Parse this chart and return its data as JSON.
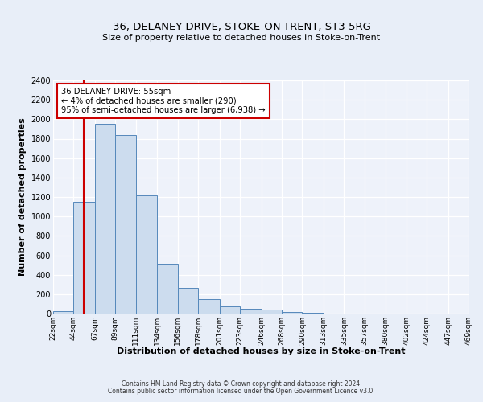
{
  "title": "36, DELANEY DRIVE, STOKE-ON-TRENT, ST3 5RG",
  "subtitle": "Size of property relative to detached houses in Stoke-on-Trent",
  "xlabel": "Distribution of detached houses by size in Stoke-on-Trent",
  "ylabel": "Number of detached properties",
  "bin_edges": [
    22,
    44,
    67,
    89,
    111,
    134,
    156,
    178,
    201,
    223,
    246,
    268,
    290,
    313,
    335,
    357,
    380,
    402,
    424,
    447,
    469
  ],
  "bin_counts": [
    25,
    1150,
    1950,
    1840,
    1215,
    515,
    265,
    148,
    78,
    50,
    40,
    15,
    5,
    3,
    2,
    1,
    1,
    0,
    0,
    0
  ],
  "property_size": 55,
  "bar_facecolor": "#ccdcee",
  "bar_edgecolor": "#5588bb",
  "redline_color": "#cc0000",
  "annotation_box_edgecolor": "#cc0000",
  "annotation_text_line1": "36 DELANEY DRIVE: 55sqm",
  "annotation_text_line2": "← 4% of detached houses are smaller (290)",
  "annotation_text_line3": "95% of semi-detached houses are larger (6,938) →",
  "ylim": [
    0,
    2400
  ],
  "yticks": [
    0,
    200,
    400,
    600,
    800,
    1000,
    1200,
    1400,
    1600,
    1800,
    2000,
    2200,
    2400
  ],
  "footer1": "Contains HM Land Registry data © Crown copyright and database right 2024.",
  "footer2": "Contains public sector information licensed under the Open Government Licence v3.0.",
  "bg_color": "#e8eef8",
  "plot_bg_color": "#eef2fa",
  "grid_color": "#ffffff",
  "tick_labels": [
    "22sqm",
    "44sqm",
    "67sqm",
    "89sqm",
    "111sqm",
    "134sqm",
    "156sqm",
    "178sqm",
    "201sqm",
    "223sqm",
    "246sqm",
    "268sqm",
    "290sqm",
    "313sqm",
    "335sqm",
    "357sqm",
    "380sqm",
    "402sqm",
    "424sqm",
    "447sqm",
    "469sqm"
  ]
}
